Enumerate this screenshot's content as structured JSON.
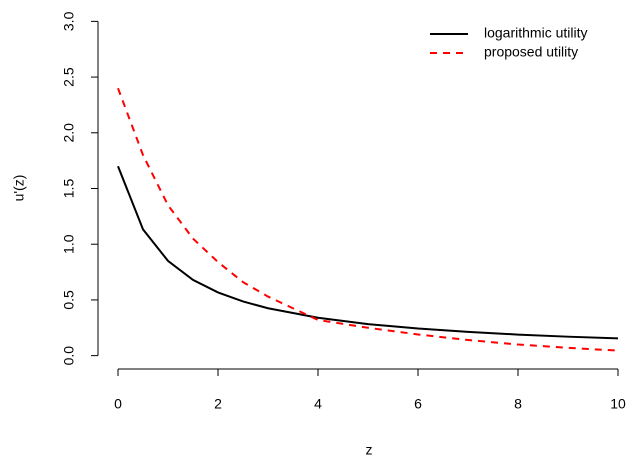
{
  "chart_data": {
    "type": "line",
    "x_label": "z",
    "y_label": "u'(z)",
    "x": [
      0,
      0.5,
      1,
      1.5,
      2,
      2.5,
      3,
      4,
      5,
      6,
      7,
      8,
      9,
      10
    ],
    "series": [
      {
        "name": "logarithmic utility",
        "color": "#000000",
        "dash": "solid",
        "values": [
          1.7,
          1.133,
          0.85,
          0.68,
          0.567,
          0.486,
          0.425,
          0.34,
          0.283,
          0.243,
          0.213,
          0.189,
          0.17,
          0.155
        ]
      },
      {
        "name": "proposed utility",
        "color": "#ff0000",
        "dash": "dashed",
        "values": [
          2.4,
          1.8,
          1.35,
          1.05,
          0.84,
          0.66,
          0.53,
          0.32,
          0.25,
          0.19,
          0.14,
          0.1,
          0.07,
          0.045
        ]
      }
    ],
    "xlim": [
      -0.4,
      10.4
    ],
    "ylim": [
      -0.12,
      3.12
    ],
    "xticks": [
      0,
      2,
      4,
      6,
      8,
      10
    ],
    "yticks": [
      {
        "value": 0,
        "label": "0.0"
      },
      0.5,
      {
        "value": 1,
        "label": "1.0"
      },
      1.5,
      {
        "value": 2,
        "label": "2.0"
      },
      2.5,
      {
        "value": 3,
        "label": "3.0"
      }
    ],
    "legend": "top-right"
  }
}
